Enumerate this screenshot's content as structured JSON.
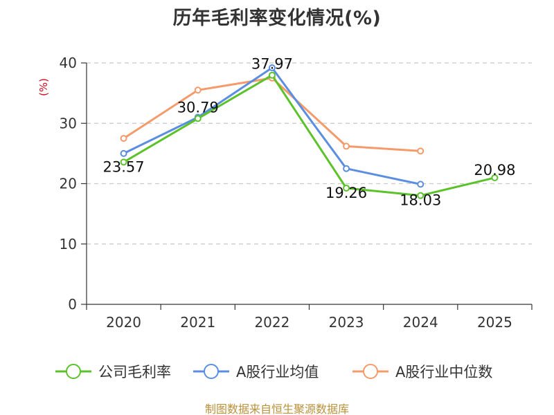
{
  "chart_data": {
    "type": "line",
    "title": "历年毛利率变化情况(%)",
    "ylabel": "(%)",
    "xlabel": "",
    "categories": [
      "2020",
      "2021",
      "2022",
      "2023",
      "2024",
      "2025"
    ],
    "ylim": [
      0,
      40
    ],
    "yticks": [
      0,
      10,
      20,
      30,
      40
    ],
    "grid": true,
    "legend_position": "bottom",
    "series": [
      {
        "name": "公司毛利率",
        "color": "#5bc22a",
        "values": [
          23.57,
          30.79,
          37.97,
          19.26,
          18.03,
          20.98
        ],
        "labels": [
          "23.57",
          "30.79",
          "37.97",
          "19.26",
          "18.03",
          "20.98"
        ]
      },
      {
        "name": "A股行业均值",
        "color": "#5b8ee0",
        "values": [
          25.0,
          31.0,
          39.2,
          22.5,
          19.9,
          null
        ]
      },
      {
        "name": "A股行业中位数",
        "color": "#f59a6a",
        "values": [
          27.5,
          35.5,
          37.5,
          26.2,
          25.4,
          null
        ]
      }
    ]
  },
  "ylabel_color": "#d9001b",
  "source": "制图数据来自恒生聚源数据库"
}
